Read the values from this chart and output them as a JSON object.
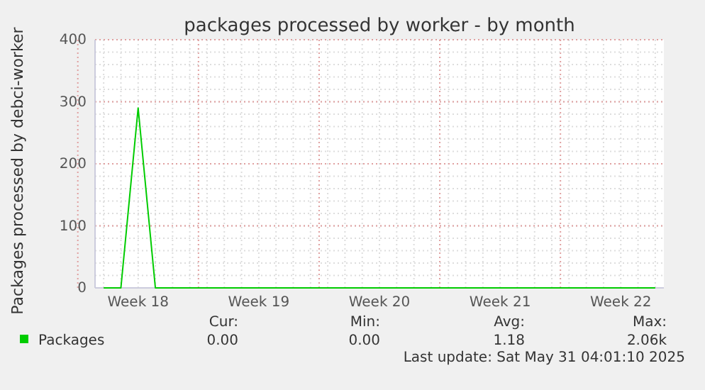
{
  "chart_data": {
    "type": "line",
    "title": "packages processed by worker - by month",
    "ylabel": "Packages processed by debci-worker",
    "categories": [
      null,
      null,
      "Week 18",
      null,
      null,
      null,
      null,
      null,
      null,
      "Week 19",
      null,
      null,
      null,
      null,
      null,
      null,
      "Week 20",
      null,
      null,
      null,
      null,
      null,
      null,
      "Week 21",
      null,
      null,
      null,
      null,
      null,
      null,
      "Week 22",
      null,
      null
    ],
    "series": [
      {
        "name": "Packages",
        "color": "#00cc00",
        "values": [
          0,
          0,
          290,
          0,
          0,
          0,
          0,
          0,
          0,
          0,
          0,
          0,
          0,
          0,
          0,
          0,
          0,
          0,
          0,
          0,
          0,
          0,
          0,
          0,
          0,
          0,
          0,
          0,
          0,
          0,
          0,
          0,
          0
        ]
      }
    ],
    "ylim": [
      0,
      400
    ],
    "yticks": [
      0,
      100,
      200,
      300,
      400
    ],
    "grid": true,
    "legend": "bottom",
    "annotations": [
      "Cur:",
      "Min:",
      "Avg:",
      "Max:",
      "0.00",
      "0.00",
      "1.18",
      "2.06k",
      "Last update: Sat May 31 04:01:10 2025"
    ]
  }
}
